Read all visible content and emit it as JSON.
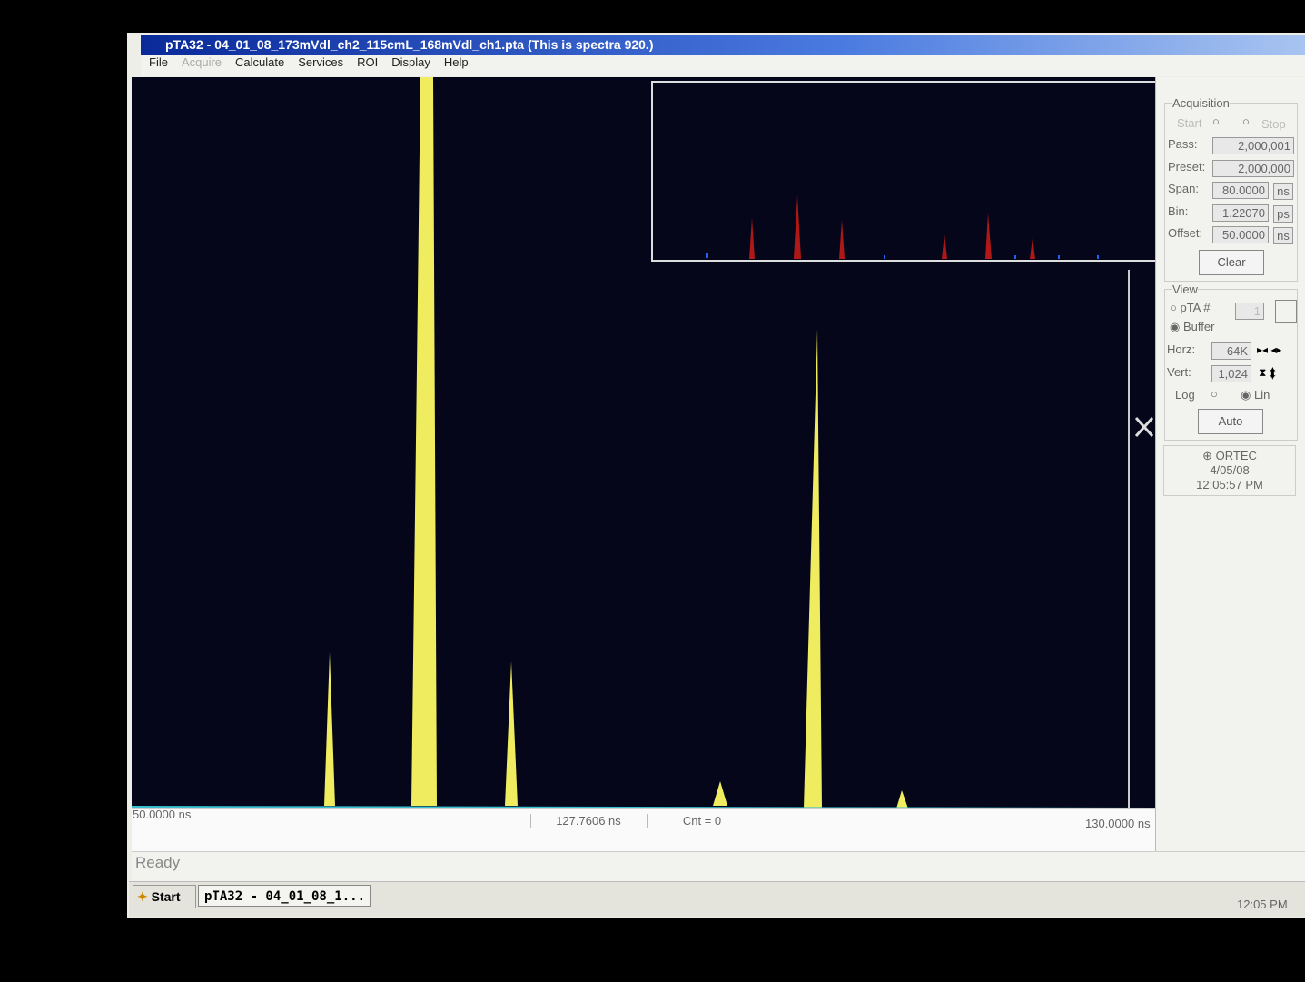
{
  "window": {
    "title": "pTA32 - 04_01_08_173mVdl_ch2_115cmL_168mVdl_ch1.pta (This is spectra 920.)",
    "menu": [
      "File",
      "Acquire",
      "Calculate",
      "Services",
      "ROI",
      "Display",
      "Help"
    ]
  },
  "spectrum": {
    "left_label": "50.0000 ns",
    "cursor_label": "127.7606 ns",
    "count_label": "Cnt = 0",
    "right_label": "130.0000 ns"
  },
  "panel": {
    "acquisition": {
      "title": "Acquisition",
      "start": "Start",
      "stop": "Stop",
      "fields": [
        {
          "label": "Pass:",
          "value": "2,000,001"
        },
        {
          "label": "Preset:",
          "value": "2,000,000"
        },
        {
          "label": "Span:",
          "value": "80.0000",
          "unit": "ns"
        },
        {
          "label": "Bin:",
          "value": "1.22070",
          "unit": "ps"
        },
        {
          "label": "Offset:",
          "value": "50.0000",
          "unit": "ns"
        }
      ],
      "clear": "Clear"
    },
    "view": {
      "title": "View",
      "pta": "pTA #",
      "pta_value": "1",
      "buffer": "Buffer",
      "horz_label": "Horz:",
      "horz_value": "64K",
      "vert_label": "Vert:",
      "vert_value": "1,024",
      "log": "Log",
      "lin": "Lin",
      "auto": "Auto"
    },
    "info": {
      "brand": "ORTEC",
      "date": "4/05/08",
      "time": "12:05:57 PM"
    }
  },
  "status": "Ready",
  "taskbar": {
    "start": "Start",
    "task": "pTA32 - 04_01_08_1...",
    "clock": "12:05 PM"
  }
}
